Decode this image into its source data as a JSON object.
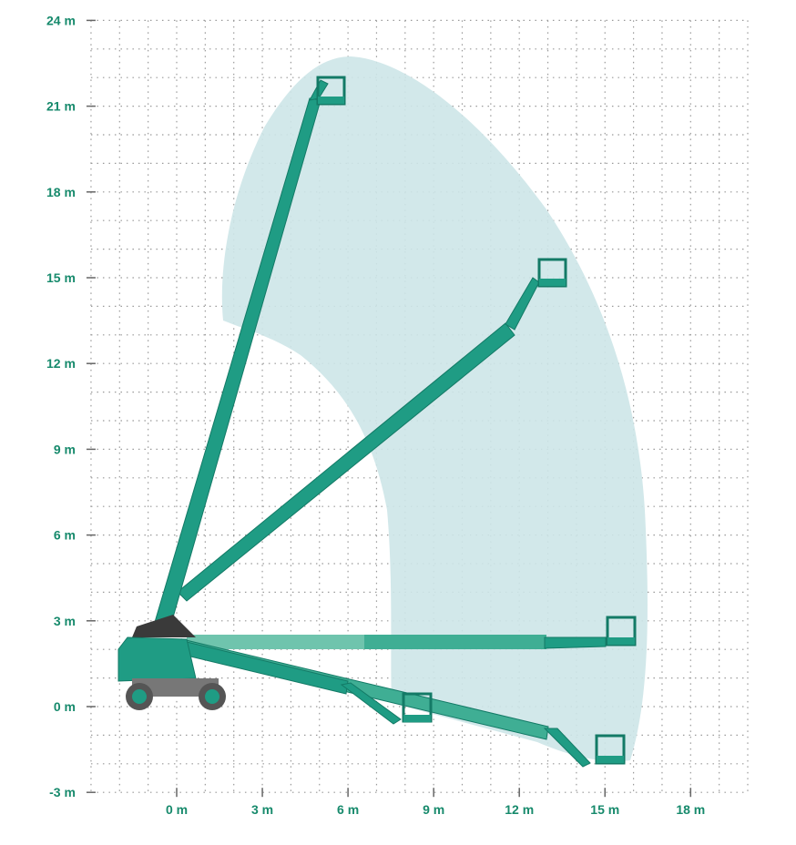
{
  "diagram": {
    "type": "working-range-diagram",
    "unit": "m",
    "y_axis": {
      "ticks": [
        24,
        21,
        18,
        15,
        12,
        9,
        6,
        3,
        0,
        -3
      ],
      "labels": [
        "24 m",
        "21 m",
        "18 m",
        "15 m",
        "12 m",
        "9 m",
        "6 m",
        "3 m",
        "0 m",
        "-3 m"
      ]
    },
    "x_axis": {
      "ticks": [
        0,
        3,
        6,
        9,
        12,
        15,
        18
      ],
      "labels": [
        "0 m",
        "3 m",
        "6 m",
        "9 m",
        "12 m",
        "15 m",
        "18 m"
      ]
    },
    "grid": "dotted, 1 m spacing",
    "colors": {
      "machine": "#1f9c84",
      "machine_dark": "#137a66",
      "envelope": "#cde6e8",
      "labels": "#178a6c",
      "chassis_grey": "#6b6b6b"
    }
  }
}
